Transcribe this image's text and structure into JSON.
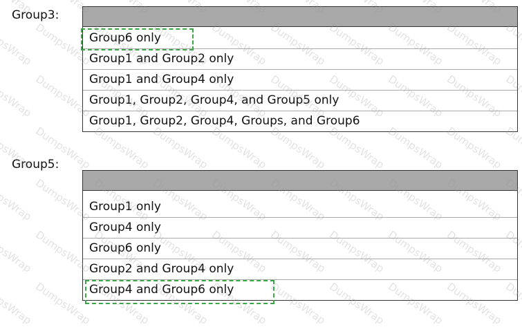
{
  "questions": [
    {
      "label": "Group3:",
      "header": "",
      "options": [
        "Group6 only",
        "Group1 and Group2 only",
        "Group1 and Group4 only",
        "Group1, Group2, Group4, and Group5 only",
        "Group1, Group2, Group4, Groups, and Group6"
      ],
      "selected_index": 0
    },
    {
      "label": "Group5:",
      "header": "",
      "options": [
        "Group1 only",
        "Group4 only",
        "Group6 only",
        "Group2 and Group4 only",
        "Group4 and Group6 only"
      ],
      "selected_index": 4
    }
  ],
  "watermark": "DumpsWrap",
  "colors": {
    "header": "#a9a9a9",
    "selection": "#3aa745"
  }
}
